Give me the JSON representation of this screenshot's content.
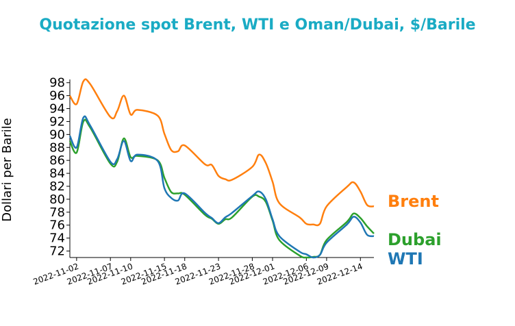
{
  "chart_data": {
    "type": "line",
    "title": "Quotazione spot Brent, WTI e Oman/Dubai, $/Barile",
    "xlabel": "",
    "ylabel": "Dollari per Barile",
    "ylim": [
      71,
      98.5
    ],
    "yticks": [
      72,
      74,
      76,
      78,
      80,
      82,
      84,
      86,
      88,
      90,
      92,
      94,
      96,
      98
    ],
    "xticks": [
      "2022-11-02",
      "2022-11-07",
      "2022-11-10",
      "2022-11-15",
      "2022-11-18",
      "2022-11-23",
      "2022-11-28",
      "2022-12-01",
      "2022-12-06",
      "2022-12-09",
      "2022-12-14"
    ],
    "x": [
      "2022-11-01",
      "2022-11-02",
      "2022-11-03",
      "2022-11-04",
      "2022-11-07",
      "2022-11-08",
      "2022-11-09",
      "2022-11-10",
      "2022-11-11",
      "2022-11-14",
      "2022-11-15",
      "2022-11-16",
      "2022-11-17",
      "2022-11-18",
      "2022-11-21",
      "2022-11-22",
      "2022-11-23",
      "2022-11-24",
      "2022-11-25",
      "2022-11-28",
      "2022-11-29",
      "2022-11-30",
      "2022-12-01",
      "2022-12-02",
      "2022-12-05",
      "2022-12-06",
      "2022-12-07",
      "2022-12-08",
      "2022-12-09",
      "2022-12-12",
      "2022-12-13",
      "2022-12-14",
      "2022-12-15",
      "2022-12-16"
    ],
    "legend": "direct-labels-right",
    "grid": false,
    "series": [
      {
        "name": "Brent",
        "color": "#ff7f0e",
        "values": [
          96.0,
          94.7,
          98.2,
          97.8,
          92.7,
          93.6,
          96.0,
          93.1,
          93.8,
          92.9,
          90.1,
          87.6,
          87.4,
          88.3,
          85.4,
          85.3,
          83.6,
          83.1,
          83.0,
          85.0,
          86.9,
          85.6,
          82.7,
          79.4,
          77.2,
          76.2,
          76.1,
          76.2,
          78.9,
          81.9,
          82.6,
          81.2,
          79.1,
          78.9
        ]
      },
      {
        "name": "Dubai",
        "color": "#2ca02c",
        "values": [
          89.0,
          87.2,
          92.0,
          91.1,
          85.5,
          85.8,
          89.4,
          86.5,
          86.7,
          86.0,
          83.3,
          81.1,
          80.9,
          80.7,
          77.6,
          77.0,
          76.2,
          76.9,
          77.2,
          80.4,
          80.4,
          79.6,
          76.7,
          73.7,
          71.3,
          71.0,
          71.1,
          71.4,
          73.7,
          76.5,
          77.8,
          77.1,
          75.8,
          74.7
        ]
      },
      {
        "name": "WTI",
        "color": "#1f77b4",
        "values": [
          89.8,
          88.0,
          92.6,
          91.4,
          85.8,
          86.2,
          89.0,
          85.9,
          86.9,
          85.9,
          81.7,
          80.2,
          79.8,
          80.9,
          77.9,
          77.1,
          76.3,
          77.2,
          77.9,
          80.5,
          81.2,
          80.0,
          76.9,
          74.3,
          71.9,
          71.5,
          71.0,
          71.4,
          73.3,
          76.1,
          77.3,
          76.4,
          74.5,
          74.3
        ]
      }
    ]
  }
}
